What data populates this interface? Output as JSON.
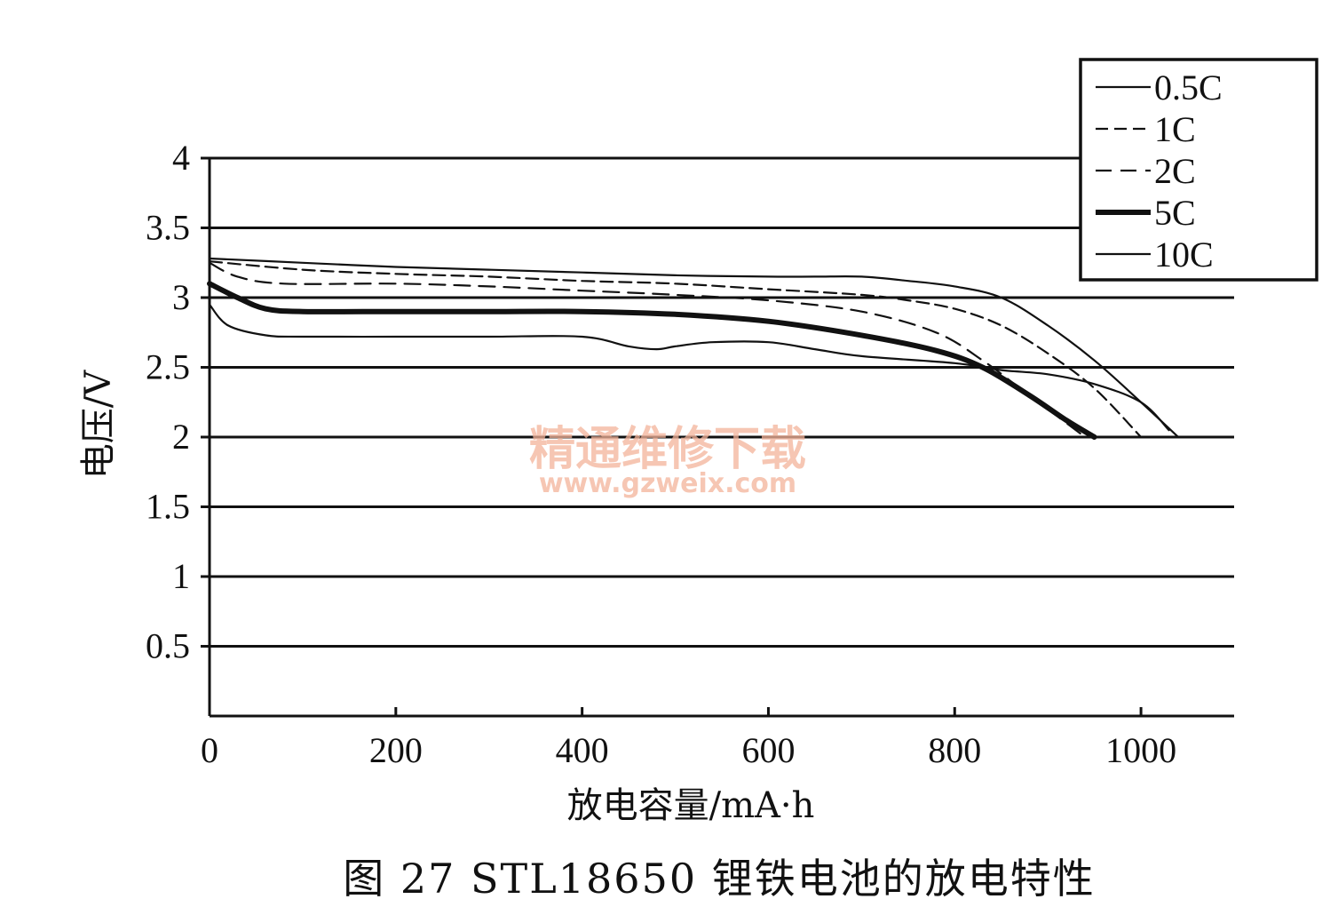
{
  "chart_data": {
    "type": "line",
    "title": "",
    "caption": "图 27   STL18650 锂铁电池的放电特性",
    "xlabel": "放电容量/mA·h",
    "ylabel": "电压/V",
    "xlim": [
      0,
      1100
    ],
    "ylim": [
      0,
      4
    ],
    "x_ticks": [
      0,
      200,
      400,
      600,
      800,
      1000
    ],
    "x_tick_labels": [
      "0",
      "200",
      "400",
      "600",
      "800",
      "1000"
    ],
    "y_ticks": [
      0.5,
      1,
      1.5,
      2,
      2.5,
      3,
      3.5,
      4
    ],
    "y_tick_labels": [
      "0.5",
      "1",
      "1.5",
      "2",
      "2.5",
      "3",
      "3.5",
      "4"
    ],
    "grid": "horizontal",
    "legend_position": "top-right",
    "series": [
      {
        "name": "0.5C",
        "style": "solid",
        "width": "thin",
        "points": [
          [
            0,
            3.28
          ],
          [
            100,
            3.25
          ],
          [
            200,
            3.22
          ],
          [
            300,
            3.2
          ],
          [
            400,
            3.18
          ],
          [
            500,
            3.16
          ],
          [
            600,
            3.15
          ],
          [
            650,
            3.15
          ],
          [
            700,
            3.15
          ],
          [
            750,
            3.12
          ],
          [
            800,
            3.08
          ],
          [
            850,
            3.0
          ],
          [
            900,
            2.8
          ],
          [
            950,
            2.55
          ],
          [
            1000,
            2.25
          ],
          [
            1040,
            2.0
          ]
        ]
      },
      {
        "name": "1C",
        "style": "dashed",
        "width": "thin",
        "points": [
          [
            0,
            3.26
          ],
          [
            100,
            3.2
          ],
          [
            200,
            3.17
          ],
          [
            300,
            3.15
          ],
          [
            400,
            3.12
          ],
          [
            500,
            3.1
          ],
          [
            600,
            3.06
          ],
          [
            700,
            3.02
          ],
          [
            750,
            2.98
          ],
          [
            800,
            2.92
          ],
          [
            850,
            2.8
          ],
          [
            900,
            2.6
          ],
          [
            950,
            2.35
          ],
          [
            1000,
            2.0
          ]
        ]
      },
      {
        "name": "2C",
        "style": "dashed",
        "width": "thin",
        "points": [
          [
            0,
            3.25
          ],
          [
            30,
            3.15
          ],
          [
            80,
            3.1
          ],
          [
            200,
            3.1
          ],
          [
            300,
            3.08
          ],
          [
            400,
            3.05
          ],
          [
            500,
            3.02
          ],
          [
            600,
            2.98
          ],
          [
            700,
            2.9
          ],
          [
            780,
            2.75
          ],
          [
            830,
            2.55
          ],
          [
            870,
            2.35
          ],
          [
            910,
            2.15
          ],
          [
            940,
            2.0
          ]
        ]
      },
      {
        "name": "5C",
        "style": "solid",
        "width": "thick",
        "points": [
          [
            0,
            3.1
          ],
          [
            30,
            3.0
          ],
          [
            60,
            2.92
          ],
          [
            100,
            2.9
          ],
          [
            200,
            2.9
          ],
          [
            300,
            2.9
          ],
          [
            400,
            2.9
          ],
          [
            500,
            2.88
          ],
          [
            600,
            2.83
          ],
          [
            700,
            2.73
          ],
          [
            780,
            2.62
          ],
          [
            830,
            2.5
          ],
          [
            880,
            2.3
          ],
          [
            920,
            2.12
          ],
          [
            950,
            2.0
          ]
        ]
      },
      {
        "name": "10C",
        "style": "solid",
        "width": "thin",
        "points": [
          [
            0,
            2.95
          ],
          [
            20,
            2.8
          ],
          [
            60,
            2.73
          ],
          [
            100,
            2.72
          ],
          [
            200,
            2.72
          ],
          [
            300,
            2.72
          ],
          [
            400,
            2.72
          ],
          [
            450,
            2.65
          ],
          [
            480,
            2.63
          ],
          [
            500,
            2.65
          ],
          [
            540,
            2.68
          ],
          [
            600,
            2.68
          ],
          [
            650,
            2.63
          ],
          [
            700,
            2.58
          ],
          [
            800,
            2.53
          ],
          [
            850,
            2.48
          ],
          [
            900,
            2.45
          ],
          [
            950,
            2.38
          ],
          [
            1000,
            2.25
          ],
          [
            1030,
            2.05
          ]
        ]
      }
    ]
  },
  "watermark": {
    "text_cn": "精通维修下载",
    "url": "www.gzweix.com"
  }
}
